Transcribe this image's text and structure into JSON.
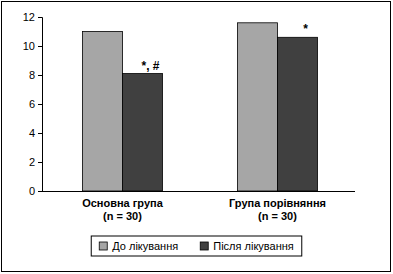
{
  "chart_data": {
    "type": "bar",
    "categories": [
      "Основна група\n(n = 30)",
      "Група порівняння\n(n = 30)"
    ],
    "series": [
      {
        "name": "До лікування",
        "color": "#a6a6a6",
        "values": [
          11,
          11.6
        ]
      },
      {
        "name": "Після лікування",
        "color": "#404040",
        "values": [
          8.1,
          10.6
        ]
      }
    ],
    "ylim": [
      0,
      12
    ],
    "yticks": [
      0,
      2,
      4,
      6,
      8,
      10,
      12
    ],
    "grid": false,
    "legend": "bottom",
    "annotations": [
      {
        "category": "Основна група\n(n = 30)",
        "series": "Після лікування",
        "text": "*, #"
      },
      {
        "category": "Група порівняння\n(n = 30)",
        "series": "Після лікування",
        "text": "*"
      }
    ]
  }
}
